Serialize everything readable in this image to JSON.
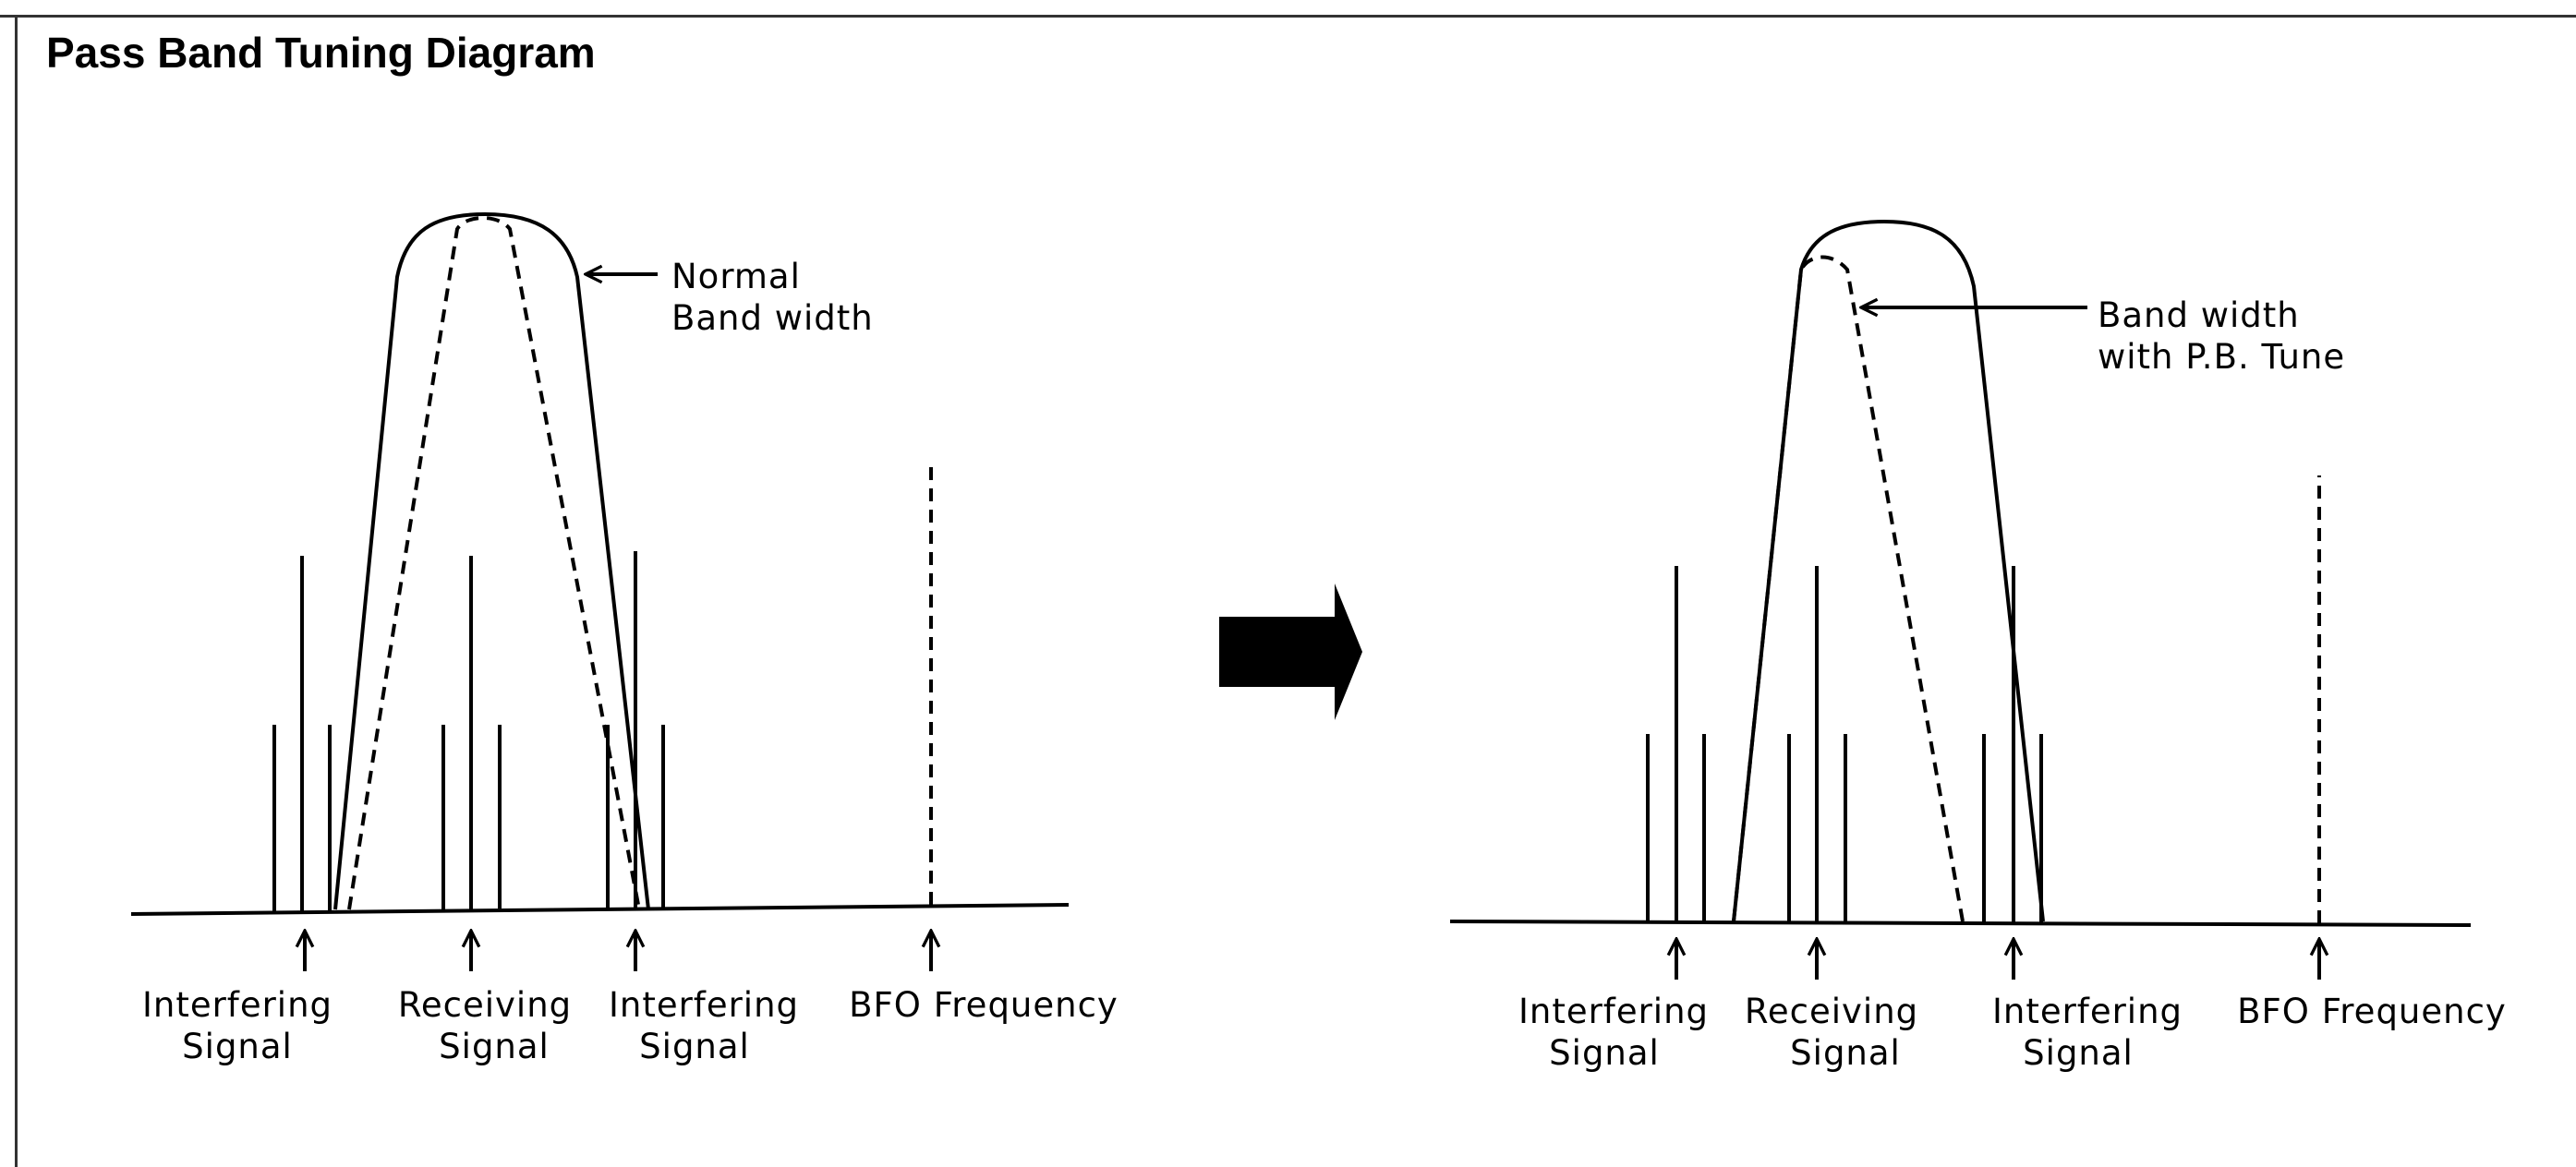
{
  "title": "Pass Band Tuning Diagram",
  "left_panel": {
    "annotation": [
      "Normal",
      "Band width"
    ],
    "markers": [
      {
        "name": "interfering-signal-left",
        "lines": [
          "Interfering",
          "Signal"
        ]
      },
      {
        "name": "receiving-signal",
        "lines": [
          "Receiving",
          "Signal"
        ]
      },
      {
        "name": "interfering-signal-right",
        "lines": [
          "Interfering",
          "Signal"
        ]
      },
      {
        "name": "bfo-frequency",
        "lines": [
          "BFO Frequency"
        ]
      }
    ]
  },
  "right_panel": {
    "annotation": [
      "Band width",
      "with P.B. Tune"
    ],
    "markers": [
      {
        "name": "interfering-signal-left",
        "lines": [
          "Interfering",
          "Signal"
        ]
      },
      {
        "name": "receiving-signal",
        "lines": [
          "Receiving",
          "Signal"
        ]
      },
      {
        "name": "interfering-signal-right",
        "lines": [
          "Interfering",
          "Signal"
        ]
      },
      {
        "name": "bfo-frequency",
        "lines": [
          "BFO Frequency"
        ]
      }
    ]
  },
  "transition_arrow": "right-arrow-icon"
}
